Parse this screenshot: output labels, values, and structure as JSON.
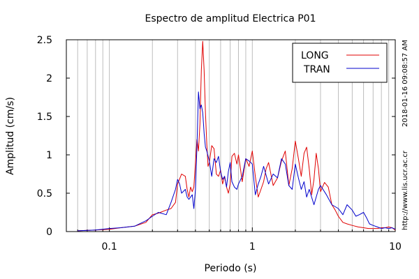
{
  "chart_data": {
    "type": "line",
    "title": "Espectro de amplitud Electrica P01",
    "xlabel": "Periodo (s)",
    "ylabel": "Amplitud (cm/s)",
    "xscale": "log",
    "xlim": [
      0.05,
      10
    ],
    "ylim": [
      0,
      2.5
    ],
    "x_ticks": [
      {
        "v": 0.1,
        "label": "0.1"
      },
      {
        "v": 1,
        "label": "1"
      },
      {
        "v": 10,
        "label": "10"
      }
    ],
    "y_ticks": [
      {
        "v": 0,
        "label": "0"
      },
      {
        "v": 0.5,
        "label": "0.5"
      },
      {
        "v": 1,
        "label": "1"
      },
      {
        "v": 1.5,
        "label": "1.5"
      },
      {
        "v": 2,
        "label": "2"
      },
      {
        "v": 2.5,
        "label": "2.5"
      }
    ],
    "grid": "vertical minor log lines",
    "legend_position": "top-right",
    "series": [
      {
        "name": "LONG",
        "color": "#e00000",
        "x": [
          0.06,
          0.08,
          0.1,
          0.12,
          0.15,
          0.18,
          0.2,
          0.22,
          0.25,
          0.27,
          0.29,
          0.3,
          0.32,
          0.34,
          0.35,
          0.36,
          0.37,
          0.38,
          0.39,
          0.4,
          0.41,
          0.42,
          0.43,
          0.44,
          0.45,
          0.46,
          0.47,
          0.48,
          0.49,
          0.5,
          0.52,
          0.54,
          0.56,
          0.58,
          0.6,
          0.62,
          0.64,
          0.66,
          0.68,
          0.7,
          0.72,
          0.75,
          0.78,
          0.8,
          0.85,
          0.9,
          0.95,
          1.0,
          1.05,
          1.1,
          1.15,
          1.2,
          1.25,
          1.3,
          1.4,
          1.5,
          1.6,
          1.7,
          1.8,
          1.9,
          2.0,
          2.1,
          2.2,
          2.3,
          2.4,
          2.5,
          2.6,
          2.7,
          2.8,
          2.9,
          3.0,
          3.2,
          3.4,
          3.6,
          3.8,
          4.0,
          4.3,
          4.6,
          5.0,
          5.5,
          6.0,
          6.5,
          7.0,
          7.5,
          8.0,
          8.5,
          9.0,
          9.5,
          10.0
        ],
        "y": [
          0.01,
          0.02,
          0.03,
          0.05,
          0.07,
          0.12,
          0.22,
          0.24,
          0.28,
          0.3,
          0.38,
          0.62,
          0.75,
          0.72,
          0.55,
          0.45,
          0.58,
          0.52,
          0.58,
          0.9,
          1.2,
          1.05,
          1.4,
          2.1,
          2.48,
          2.1,
          1.55,
          1.15,
          0.85,
          0.9,
          1.12,
          1.08,
          0.75,
          0.72,
          0.8,
          0.62,
          0.72,
          0.58,
          0.5,
          0.62,
          0.98,
          1.02,
          0.88,
          1.0,
          0.65,
          0.95,
          0.85,
          1.05,
          0.72,
          0.45,
          0.55,
          0.65,
          0.82,
          0.9,
          0.6,
          0.7,
          0.92,
          1.05,
          0.6,
          0.82,
          1.18,
          0.95,
          0.72,
          1.02,
          1.1,
          0.82,
          0.48,
          0.68,
          1.02,
          0.82,
          0.52,
          0.64,
          0.58,
          0.35,
          0.28,
          0.2,
          0.12,
          0.1,
          0.08,
          0.06,
          0.05,
          0.04,
          0.04,
          0.04,
          0.05,
          0.05,
          0.06,
          0.05,
          0.02
        ]
      },
      {
        "name": "TRAN",
        "color": "#0000cc",
        "x": [
          0.06,
          0.08,
          0.1,
          0.12,
          0.15,
          0.18,
          0.2,
          0.22,
          0.25,
          0.27,
          0.29,
          0.3,
          0.31,
          0.32,
          0.34,
          0.35,
          0.36,
          0.38,
          0.39,
          0.4,
          0.41,
          0.42,
          0.43,
          0.44,
          0.45,
          0.46,
          0.47,
          0.48,
          0.5,
          0.52,
          0.54,
          0.56,
          0.58,
          0.6,
          0.62,
          0.64,
          0.66,
          0.68,
          0.7,
          0.72,
          0.75,
          0.78,
          0.8,
          0.85,
          0.9,
          0.95,
          1.0,
          1.05,
          1.1,
          1.15,
          1.2,
          1.3,
          1.4,
          1.5,
          1.6,
          1.7,
          1.8,
          1.9,
          2.0,
          2.1,
          2.2,
          2.3,
          2.4,
          2.5,
          2.7,
          2.9,
          3.0,
          3.3,
          3.6,
          4.0,
          4.3,
          4.6,
          5.0,
          5.3,
          5.6,
          6.0,
          6.3,
          6.6,
          7.0,
          7.5,
          8.0,
          8.5,
          9.0,
          9.5,
          10.0
        ],
        "y": [
          0.01,
          0.02,
          0.04,
          0.05,
          0.07,
          0.14,
          0.2,
          0.25,
          0.22,
          0.38,
          0.55,
          0.68,
          0.62,
          0.5,
          0.55,
          0.45,
          0.42,
          0.48,
          0.3,
          0.55,
          1.1,
          1.82,
          1.6,
          1.65,
          1.55,
          1.28,
          1.1,
          1.05,
          0.92,
          0.72,
          0.95,
          0.9,
          0.98,
          0.78,
          0.68,
          0.72,
          0.58,
          0.78,
          0.9,
          0.65,
          0.58,
          0.55,
          0.62,
          0.72,
          0.95,
          0.92,
          0.88,
          0.48,
          0.62,
          0.72,
          0.85,
          0.62,
          0.75,
          0.7,
          0.95,
          0.88,
          0.6,
          0.55,
          0.88,
          0.7,
          0.55,
          0.65,
          0.45,
          0.55,
          0.35,
          0.55,
          0.6,
          0.48,
          0.35,
          0.3,
          0.22,
          0.35,
          0.28,
          0.2,
          0.22,
          0.25,
          0.18,
          0.1,
          0.08,
          0.06,
          0.04,
          0.05,
          0.04,
          0.05,
          0.03
        ]
      }
    ]
  },
  "side_text": {
    "timestamp": "2018-01-16 09:08:57 AM",
    "url": "http://www.lis.ucr.ac.cr"
  }
}
